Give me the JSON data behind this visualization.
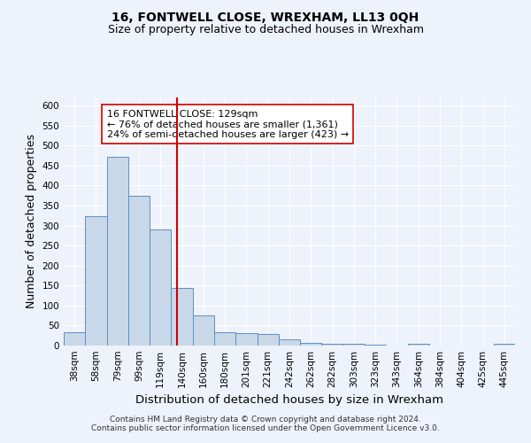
{
  "title": "16, FONTWELL CLOSE, WREXHAM, LL13 0QH",
  "subtitle": "Size of property relative to detached houses in Wrexham",
  "xlabel": "Distribution of detached houses by size in Wrexham",
  "ylabel": "Number of detached properties",
  "categories": [
    "38sqm",
    "58sqm",
    "79sqm",
    "99sqm",
    "119sqm",
    "140sqm",
    "160sqm",
    "180sqm",
    "201sqm",
    "221sqm",
    "242sqm",
    "262sqm",
    "282sqm",
    "303sqm",
    "323sqm",
    "343sqm",
    "364sqm",
    "384sqm",
    "404sqm",
    "425sqm",
    "445sqm"
  ],
  "values": [
    33,
    323,
    472,
    374,
    291,
    143,
    75,
    33,
    31,
    29,
    16,
    7,
    5,
    5,
    2,
    1,
    4,
    0,
    0,
    0,
    5
  ],
  "bar_color": "#c8d8e8",
  "bar_edge_color": "#5b8fc9",
  "vline_x": 4.76,
  "vline_color": "#cc0000",
  "annotation_text": "16 FONTWELL CLOSE: 129sqm\n← 76% of detached houses are smaller (1,361)\n24% of semi-detached houses are larger (423) →",
  "annotation_box_color": "#ffffff",
  "annotation_box_edge": "#cc0000",
  "ylim": [
    0,
    620
  ],
  "yticks": [
    0,
    50,
    100,
    150,
    200,
    250,
    300,
    350,
    400,
    450,
    500,
    550,
    600
  ],
  "footer1": "Contains HM Land Registry data © Crown copyright and database right 2024.",
  "footer2": "Contains public sector information licensed under the Open Government Licence v3.0.",
  "bg_color": "#eef2fa",
  "grid_color": "#ffffff",
  "title_fontsize": 10,
  "subtitle_fontsize": 9,
  "axis_label_fontsize": 9,
  "tick_fontsize": 7.5,
  "footer_fontsize": 6.5,
  "ann_fontsize": 8
}
